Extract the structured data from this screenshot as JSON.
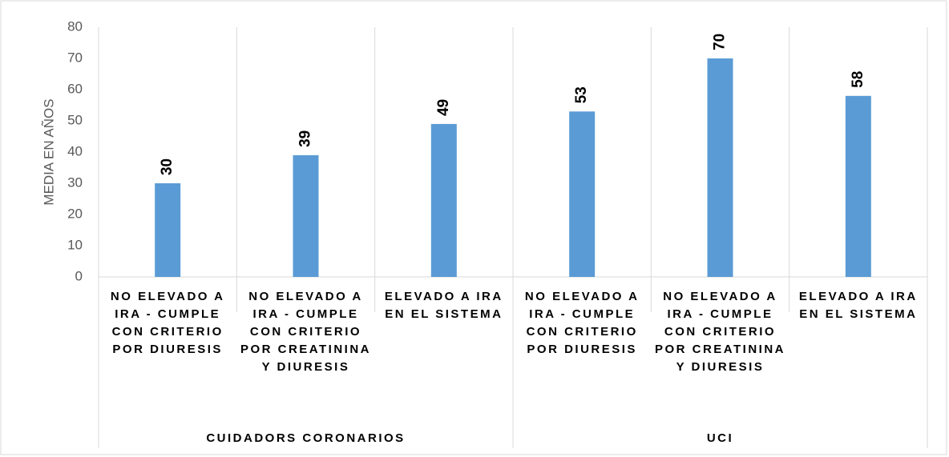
{
  "chart_data": {
    "type": "bar",
    "y_axis_label": "MEDIA EN AÑOS",
    "categories": [
      "NO ELEVADO A IRA - CUMPLE CON CRITERIO POR DIURESIS",
      "NO ELEVADO A IRA - CUMPLE CON CRITERIO POR CREATININA Y DIURESIS",
      "ELEVADO A IRA EN EL SISTEMA",
      "NO ELEVADO A IRA - CUMPLE CON CRITERIO POR DIURESIS",
      "NO ELEVADO A IRA - CUMPLE CON CRITERIO POR CREATININA Y DIURESIS",
      "ELEVADO A IRA EN EL SISTEMA"
    ],
    "groups": [
      "CUIDADORS CORONARIOS",
      "UCI"
    ],
    "values": [
      30,
      39,
      49,
      53,
      70,
      58
    ],
    "color": "#5b9bd5",
    "ylim": [
      0,
      80
    ],
    "yticks": [
      0,
      10,
      20,
      30,
      40,
      50,
      60,
      70,
      80
    ],
    "grid": false
  }
}
